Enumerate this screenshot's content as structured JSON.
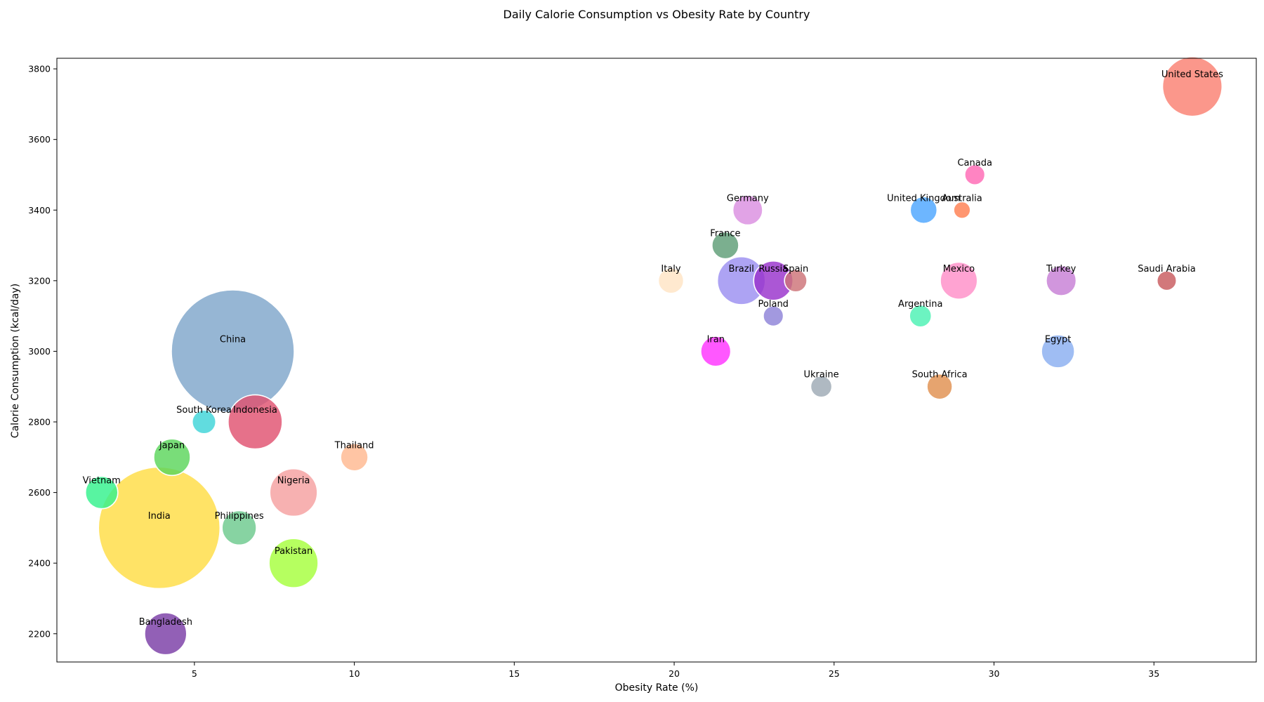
{
  "chart_data": {
    "type": "scatter",
    "title": "Daily Calorie Consumption vs Obesity Rate by Country",
    "xlabel": "Obesity Rate (%)",
    "ylabel": "Calorie Consumption (kcal/day)",
    "xlim": [
      0.7,
      38.2
    ],
    "ylim": [
      2120,
      3830
    ],
    "xticks": [
      5,
      10,
      15,
      20,
      25,
      30,
      35
    ],
    "yticks": [
      2200,
      2400,
      2600,
      2800,
      3000,
      3200,
      3400,
      3600,
      3800
    ],
    "grid": false,
    "legend": "none",
    "points": [
      {
        "label": "United States",
        "x": 36.2,
        "y": 3750,
        "size": 331,
        "color": "#FA8072"
      },
      {
        "label": "Canada",
        "x": 29.4,
        "y": 3500,
        "size": 38,
        "color": "#FF69B4"
      },
      {
        "label": "United Kingdom",
        "x": 27.8,
        "y": 3400,
        "size": 67,
        "color": "#4DA6FF"
      },
      {
        "label": "Australia",
        "x": 29.0,
        "y": 3400,
        "size": 26,
        "color": "#FF7F50"
      },
      {
        "label": "Germany",
        "x": 22.3,
        "y": 3400,
        "size": 83,
        "color": "#DA8FE0"
      },
      {
        "label": "France",
        "x": 21.6,
        "y": 3300,
        "size": 67,
        "color": "#5E9E76"
      },
      {
        "label": "Italy",
        "x": 19.9,
        "y": 3200,
        "size": 60,
        "color": "#FFE4C4"
      },
      {
        "label": "Brazil",
        "x": 22.1,
        "y": 3200,
        "size": 214,
        "color": "#9B8FF0"
      },
      {
        "label": "Russia",
        "x": 23.1,
        "y": 3200,
        "size": 144,
        "color": "#9932CC"
      },
      {
        "label": "Spain",
        "x": 23.8,
        "y": 3200,
        "size": 47,
        "color": "#CD7377"
      },
      {
        "label": "Mexico",
        "x": 28.9,
        "y": 3200,
        "size": 128,
        "color": "#FF8FC8"
      },
      {
        "label": "Turkey",
        "x": 32.1,
        "y": 3200,
        "size": 84,
        "color": "#C77FD6"
      },
      {
        "label": "Saudi Arabia",
        "x": 35.4,
        "y": 3200,
        "size": 35,
        "color": "#C85A5E"
      },
      {
        "label": "Poland",
        "x": 23.1,
        "y": 3100,
        "size": 38,
        "color": "#8E82D8"
      },
      {
        "label": "Argentina",
        "x": 27.7,
        "y": 3100,
        "size": 45,
        "color": "#4CF2B3"
      },
      {
        "label": "Iran",
        "x": 21.3,
        "y": 3000,
        "size": 84,
        "color": "#FF33FF"
      },
      {
        "label": "Egypt",
        "x": 32.0,
        "y": 3000,
        "size": 102,
        "color": "#8AAFF0"
      },
      {
        "label": "Ukraine",
        "x": 24.6,
        "y": 2900,
        "size": 42,
        "color": "#9EA9B5"
      },
      {
        "label": "South Africa",
        "x": 28.3,
        "y": 2900,
        "size": 60,
        "color": "#E0904F"
      },
      {
        "label": "China",
        "x": 6.2,
        "y": 3000,
        "size": 1411,
        "color": "#7FA6CB"
      },
      {
        "label": "South Korea",
        "x": 5.3,
        "y": 2800,
        "size": 52,
        "color": "#3ED4D8"
      },
      {
        "label": "Indonesia",
        "x": 6.9,
        "y": 2800,
        "size": 274,
        "color": "#E05270"
      },
      {
        "label": "Japan",
        "x": 4.3,
        "y": 2700,
        "size": 125,
        "color": "#5CD65C"
      },
      {
        "label": "Thailand",
        "x": 10.0,
        "y": 2700,
        "size": 70,
        "color": "#FFB890"
      },
      {
        "label": "Vietnam",
        "x": 2.1,
        "y": 2600,
        "size": 98,
        "color": "#33F28C"
      },
      {
        "label": "Nigeria",
        "x": 8.1,
        "y": 2600,
        "size": 211,
        "color": "#F5A0A0"
      },
      {
        "label": "India",
        "x": 3.9,
        "y": 2500,
        "size": 1380,
        "color": "#FFDD44"
      },
      {
        "label": "Philippines",
        "x": 6.4,
        "y": 2500,
        "size": 110,
        "color": "#6CC98E"
      },
      {
        "label": "Pakistan",
        "x": 8.1,
        "y": 2400,
        "size": 225,
        "color": "#A6FF3D"
      },
      {
        "label": "Bangladesh",
        "x": 4.1,
        "y": 2200,
        "size": 165,
        "color": "#7A3DA6"
      }
    ]
  }
}
